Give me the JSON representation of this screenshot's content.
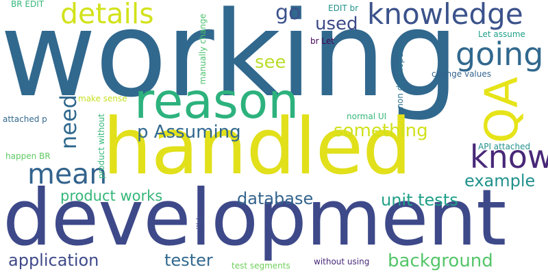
{
  "palette": {
    "dark_purple": "#440154",
    "indigo": "#3b528b",
    "dark_blue": "#31688e",
    "teal": "#21918c",
    "green": "#35b779",
    "light_green": "#6ece58",
    "yellow": "#e6e419"
  },
  "words": [
    {
      "text": "working",
      "color": "#31688e"
    },
    {
      "text": "development",
      "color": "#3e4989"
    },
    {
      "text": "handled",
      "color": "#e1e01b"
    },
    {
      "text": "reason",
      "color": "#2db27d"
    },
    {
      "text": "knowledge",
      "color": "#3b528b"
    },
    {
      "text": "going",
      "color": "#31688e"
    },
    {
      "text": "details",
      "color": "#d2e21b"
    },
    {
      "text": "QA",
      "color": "#e6e419"
    },
    {
      "text": "know",
      "color": "#482878"
    },
    {
      "text": "mean",
      "color": "#33638d"
    },
    {
      "text": "need",
      "color": "#30698e"
    },
    {
      "text": "go",
      "color": "#3b528b"
    },
    {
      "text": "used",
      "color": "#3e4989"
    },
    {
      "text": "see",
      "color": "#b8de29"
    },
    {
      "text": "p Assuming",
      "color": "#31688e"
    },
    {
      "text": "something",
      "color": "#d0e11c"
    },
    {
      "text": "example",
      "color": "#21918c"
    },
    {
      "text": "product works",
      "color": "#35b779"
    },
    {
      "text": "database",
      "color": "#33638d"
    },
    {
      "text": "unit tests",
      "color": "#1fa088"
    },
    {
      "text": "application",
      "color": "#3e4989"
    },
    {
      "text": "tester",
      "color": "#31688e"
    },
    {
      "text": "background",
      "color": "#54c568"
    },
    {
      "text": "BR EDIT",
      "color": "#35b779"
    },
    {
      "text": "EDIT br",
      "color": "#21918c"
    },
    {
      "text": "br Let",
      "color": "#440154"
    },
    {
      "text": "Let assume",
      "color": "#1fa088"
    },
    {
      "text": "manually change",
      "color": "#4ac16d"
    },
    {
      "text": "non developers",
      "color": "#2c728e"
    },
    {
      "text": "change values",
      "color": "#33638d"
    },
    {
      "text": "make sense",
      "color": "#c5e021"
    },
    {
      "text": "attached p",
      "color": "#31688e"
    },
    {
      "text": "normal UI",
      "color": "#35b779"
    },
    {
      "text": "product without",
      "color": "#35b779"
    },
    {
      "text": "happen BR",
      "color": "#5ec962"
    },
    {
      "text": "API attached",
      "color": "#21918c"
    },
    {
      "text": "will happen",
      "color": "#3e4989"
    },
    {
      "text": "test segments",
      "color": "#6ece58"
    },
    {
      "text": "without using",
      "color": "#482878"
    }
  ]
}
